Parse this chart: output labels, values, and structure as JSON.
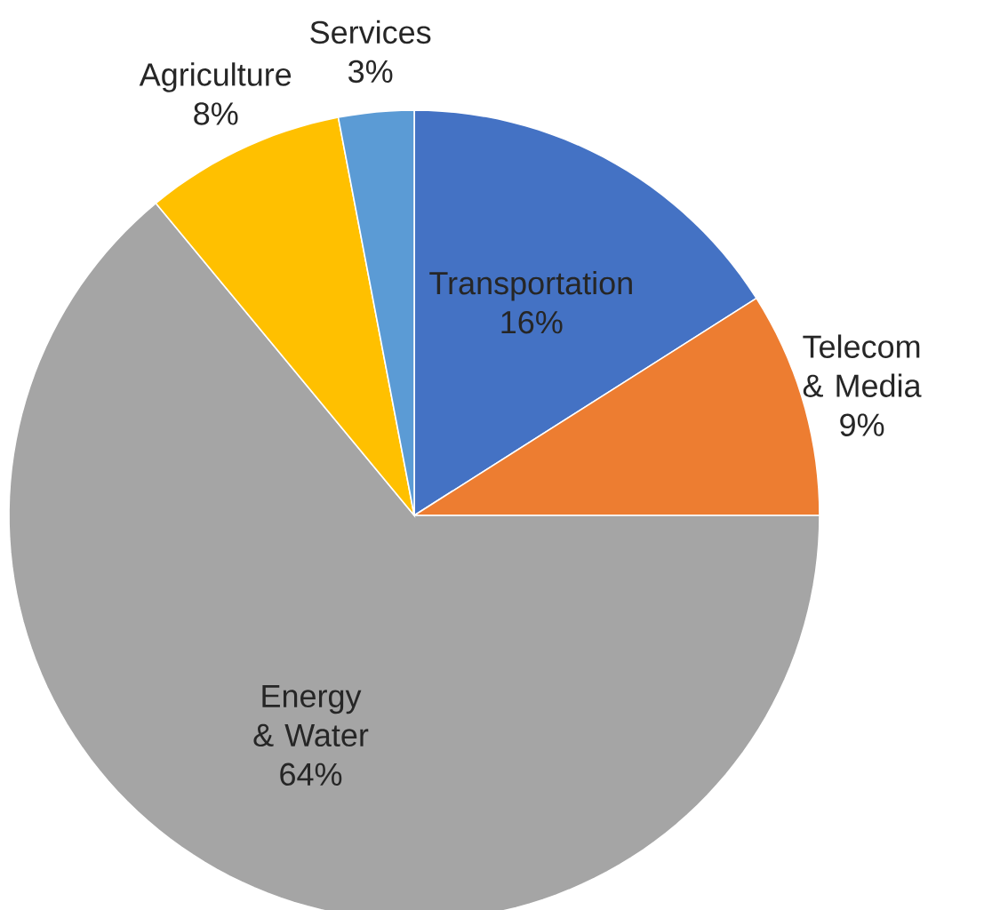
{
  "chart_data": {
    "type": "pie",
    "categories": [
      "Transportation",
      "Telecom & Media",
      "Energy & Water",
      "Agriculture",
      "Services"
    ],
    "values": [
      16,
      9,
      64,
      8,
      3
    ],
    "colors": [
      "#4472c4",
      "#ed7d31",
      "#a5a5a5",
      "#ffc000",
      "#5b9bd5"
    ],
    "value_labels": [
      "16%",
      "9%",
      "64%",
      "8%",
      "3%"
    ]
  }
}
